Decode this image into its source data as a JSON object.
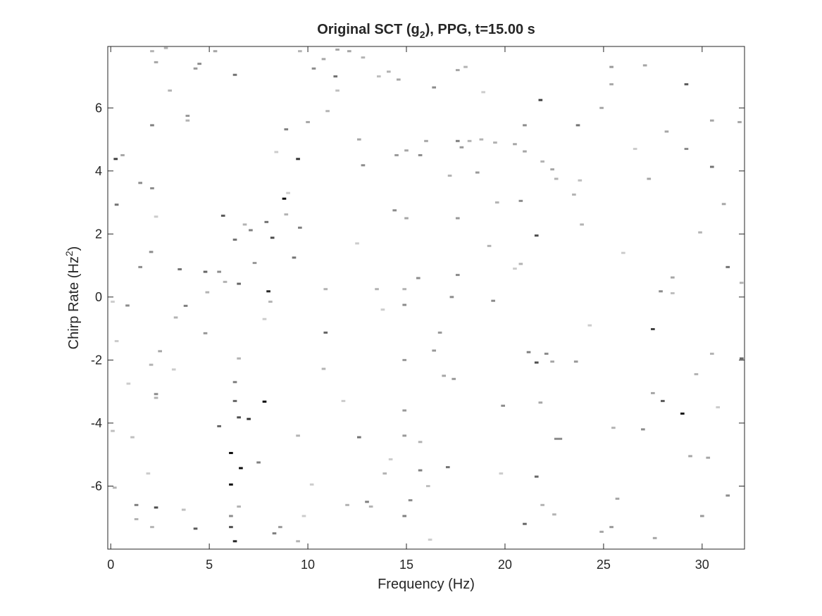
{
  "chart_data": {
    "type": "heatmap",
    "title": "Original SCT (g",
    "title_subscript": "2",
    "title_suffix": "), PPG, t=15.00 s",
    "xlabel": "Frequency (Hz)",
    "ylabel": "Chirp Rate (Hz",
    "ylabel_superscript": "2",
    "ylabel_suffix": ")",
    "xlim": [
      -0.15,
      32.15
    ],
    "ylim": [
      -8.0,
      7.95
    ],
    "x_ticks": [
      0,
      5,
      10,
      15,
      20,
      25,
      30
    ],
    "x_tick_labels": [
      "0",
      "5",
      "10",
      "15",
      "20",
      "25",
      "30"
    ],
    "y_ticks": [
      -6,
      -4,
      -2,
      0,
      2,
      4,
      6
    ],
    "y_tick_labels": [
      "-6",
      "-4",
      "-2",
      "0",
      "2",
      "4",
      "6"
    ],
    "colormap": "gray-inverted",
    "background_color": "#ffffff",
    "axis_color": "#262626",
    "grid": false,
    "cells": [
      [
        0.25,
        4.38,
        0.75
      ],
      [
        0.3,
        2.93,
        0.55
      ],
      [
        0.1,
        -0.15,
        0.2
      ],
      [
        0.3,
        -1.4,
        0.2
      ],
      [
        0.2,
        -6.05,
        0.3
      ],
      [
        0.1,
        -4.25,
        0.25
      ],
      [
        0.6,
        4.5,
        0.35
      ],
      [
        0.85,
        -0.27,
        0.45
      ],
      [
        0.9,
        -2.75,
        0.2
      ],
      [
        1.5,
        3.62,
        0.45
      ],
      [
        1.5,
        0.95,
        0.45
      ],
      [
        1.3,
        -6.6,
        0.5
      ],
      [
        1.3,
        -7.05,
        0.3
      ],
      [
        1.9,
        -5.6,
        0.2
      ],
      [
        1.1,
        -4.45,
        0.25
      ],
      [
        2.1,
        5.45,
        0.5
      ],
      [
        2.1,
        3.45,
        0.45
      ],
      [
        2.05,
        1.43,
        0.45
      ],
      [
        2.05,
        -2.15,
        0.3
      ],
      [
        2.3,
        -3.08,
        0.45
      ],
      [
        2.3,
        -3.2,
        0.3
      ],
      [
        2.3,
        -6.68,
        0.7
      ],
      [
        2.1,
        -7.3,
        0.3
      ],
      [
        2.1,
        7.8,
        0.3
      ],
      [
        2.3,
        7.45,
        0.35
      ],
      [
        2.8,
        7.9,
        0.3
      ],
      [
        2.5,
        -1.72,
        0.35
      ],
      [
        2.3,
        2.55,
        0.2
      ],
      [
        3.0,
        6.55,
        0.3
      ],
      [
        3.5,
        0.88,
        0.55
      ],
      [
        3.3,
        -0.65,
        0.3
      ],
      [
        3.8,
        -0.28,
        0.5
      ],
      [
        3.9,
        5.75,
        0.4
      ],
      [
        3.9,
        5.6,
        0.3
      ],
      [
        4.3,
        7.25,
        0.4
      ],
      [
        4.3,
        -7.35,
        0.65
      ],
      [
        4.8,
        -1.15,
        0.4
      ],
      [
        4.8,
        0.8,
        0.6
      ],
      [
        4.9,
        0.15,
        0.3
      ],
      [
        4.5,
        7.4,
        0.45
      ],
      [
        3.7,
        -6.75,
        0.25
      ],
      [
        5.3,
        7.8,
        0.35
      ],
      [
        5.5,
        -4.1,
        0.6
      ],
      [
        5.5,
        0.8,
        0.45
      ],
      [
        5.7,
        2.58,
        0.65
      ],
      [
        5.8,
        0.48,
        0.3
      ],
      [
        6.1,
        -4.95,
        0.95
      ],
      [
        6.1,
        -5.95,
        0.95
      ],
      [
        6.1,
        -7.3,
        0.7
      ],
      [
        6.1,
        -6.95,
        0.45
      ],
      [
        6.3,
        -3.3,
        0.6
      ],
      [
        6.3,
        -2.7,
        0.5
      ],
      [
        6.3,
        1.82,
        0.55
      ],
      [
        6.3,
        7.05,
        0.55
      ],
      [
        6.5,
        0.42,
        0.6
      ],
      [
        6.5,
        -1.95,
        0.3
      ],
      [
        6.5,
        -3.82,
        0.7
      ],
      [
        6.6,
        -5.43,
        0.95
      ],
      [
        6.5,
        -6.65,
        0.3
      ],
      [
        6.3,
        -7.75,
        0.85
      ],
      [
        7.0,
        -3.87,
        0.8
      ],
      [
        7.1,
        2.12,
        0.5
      ],
      [
        7.3,
        1.08,
        0.4
      ],
      [
        6.8,
        2.3,
        0.3
      ],
      [
        7.5,
        -5.25,
        0.5
      ],
      [
        7.8,
        -3.32,
        0.95
      ],
      [
        8.0,
        0.18,
        0.85
      ],
      [
        7.9,
        2.38,
        0.55
      ],
      [
        8.2,
        1.88,
        0.7
      ],
      [
        8.3,
        -7.5,
        0.5
      ],
      [
        8.1,
        -0.15,
        0.3
      ],
      [
        7.8,
        -0.7,
        0.2
      ],
      [
        8.6,
        -7.3,
        0.4
      ],
      [
        8.8,
        3.12,
        0.95
      ],
      [
        8.9,
        5.32,
        0.5
      ],
      [
        8.9,
        2.62,
        0.3
      ],
      [
        9.3,
        1.25,
        0.55
      ],
      [
        9.5,
        4.38,
        0.8
      ],
      [
        9.6,
        2.2,
        0.5
      ],
      [
        9.0,
        3.3,
        0.2
      ],
      [
        9.5,
        -4.4,
        0.3
      ],
      [
        9.5,
        -7.75,
        0.3
      ],
      [
        9.6,
        7.8,
        0.3
      ],
      [
        9.8,
        -6.95,
        0.2
      ],
      [
        10.2,
        -5.95,
        0.2
      ],
      [
        10.0,
        5.55,
        0.35
      ],
      [
        10.3,
        7.25,
        0.45
      ],
      [
        10.8,
        7.55,
        0.35
      ],
      [
        10.9,
        -1.13,
        0.6
      ],
      [
        10.9,
        0.25,
        0.3
      ],
      [
        10.8,
        -2.28,
        0.3
      ],
      [
        11.0,
        5.9,
        0.3
      ],
      [
        11.4,
        7.0,
        0.55
      ],
      [
        11.5,
        6.55,
        0.25
      ],
      [
        11.5,
        7.85,
        0.35
      ],
      [
        12.0,
        -6.6,
        0.3
      ],
      [
        12.1,
        7.8,
        0.35
      ],
      [
        11.8,
        -3.3,
        0.2
      ],
      [
        12.6,
        5.0,
        0.35
      ],
      [
        12.6,
        -4.45,
        0.55
      ],
      [
        12.8,
        4.18,
        0.45
      ],
      [
        12.8,
        7.6,
        0.3
      ],
      [
        13.0,
        -6.5,
        0.5
      ],
      [
        13.2,
        -6.65,
        0.3
      ],
      [
        13.5,
        0.25,
        0.3
      ],
      [
        13.6,
        7.0,
        0.25
      ],
      [
        13.9,
        -5.6,
        0.3
      ],
      [
        14.1,
        7.15,
        0.3
      ],
      [
        14.4,
        2.75,
        0.45
      ],
      [
        14.5,
        4.5,
        0.4
      ],
      [
        14.2,
        -5.15,
        0.2
      ],
      [
        14.6,
        6.9,
        0.35
      ],
      [
        14.9,
        -0.25,
        0.45
      ],
      [
        14.9,
        0.25,
        0.3
      ],
      [
        14.9,
        -2.0,
        0.4
      ],
      [
        14.9,
        -3.6,
        0.4
      ],
      [
        14.9,
        -4.4,
        0.4
      ],
      [
        14.9,
        -6.95,
        0.5
      ],
      [
        15.0,
        2.5,
        0.35
      ],
      [
        15.0,
        4.65,
        0.35
      ],
      [
        15.2,
        -6.45,
        0.45
      ],
      [
        15.6,
        0.6,
        0.45
      ],
      [
        15.7,
        4.5,
        0.45
      ],
      [
        15.7,
        -5.5,
        0.5
      ],
      [
        15.7,
        -4.6,
        0.3
      ],
      [
        16.0,
        4.95,
        0.35
      ],
      [
        16.1,
        -6.0,
        0.25
      ],
      [
        16.4,
        -1.7,
        0.4
      ],
      [
        16.4,
        6.65,
        0.45
      ],
      [
        16.7,
        -1.13,
        0.4
      ],
      [
        16.9,
        -2.5,
        0.35
      ],
      [
        17.1,
        -5.4,
        0.55
      ],
      [
        17.2,
        3.85,
        0.3
      ],
      [
        17.3,
        0.0,
        0.45
      ],
      [
        17.4,
        -2.6,
        0.4
      ],
      [
        17.6,
        7.2,
        0.35
      ],
      [
        17.6,
        4.95,
        0.5
      ],
      [
        17.6,
        2.5,
        0.4
      ],
      [
        17.6,
        0.7,
        0.45
      ],
      [
        17.8,
        4.75,
        0.4
      ],
      [
        18.0,
        7.3,
        0.3
      ],
      [
        18.2,
        4.95,
        0.3
      ],
      [
        18.6,
        3.95,
        0.4
      ],
      [
        18.8,
        5.0,
        0.3
      ],
      [
        19.2,
        1.62,
        0.3
      ],
      [
        19.4,
        -0.12,
        0.45
      ],
      [
        19.5,
        4.9,
        0.3
      ],
      [
        19.6,
        3.0,
        0.3
      ],
      [
        19.9,
        -3.45,
        0.45
      ],
      [
        20.5,
        4.85,
        0.35
      ],
      [
        20.8,
        3.05,
        0.45
      ],
      [
        20.8,
        1.05,
        0.3
      ],
      [
        21.0,
        -7.2,
        0.6
      ],
      [
        21.0,
        4.62,
        0.35
      ],
      [
        21.0,
        5.45,
        0.45
      ],
      [
        21.2,
        -1.75,
        0.5
      ],
      [
        21.6,
        1.95,
        0.7
      ],
      [
        21.6,
        -2.08,
        0.7
      ],
      [
        21.6,
        -5.7,
        0.6
      ],
      [
        21.8,
        6.25,
        0.75
      ],
      [
        21.8,
        -3.35,
        0.35
      ],
      [
        21.9,
        4.3,
        0.3
      ],
      [
        21.9,
        -6.6,
        0.3
      ],
      [
        22.1,
        -1.8,
        0.45
      ],
      [
        22.4,
        4.05,
        0.35
      ],
      [
        22.4,
        -2.05,
        0.35
      ],
      [
        22.6,
        -4.5,
        0.45
      ],
      [
        22.8,
        -4.5,
        0.45
      ],
      [
        22.6,
        3.75,
        0.3
      ],
      [
        22.5,
        -6.9,
        0.3
      ],
      [
        23.5,
        3.25,
        0.3
      ],
      [
        23.6,
        -2.05,
        0.4
      ],
      [
        23.7,
        5.45,
        0.55
      ],
      [
        23.8,
        3.7,
        0.25
      ],
      [
        23.9,
        2.3,
        0.3
      ],
      [
        24.9,
        6.0,
        0.35
      ],
      [
        24.9,
        -7.45,
        0.35
      ],
      [
        25.4,
        7.3,
        0.4
      ],
      [
        25.4,
        6.75,
        0.35
      ],
      [
        25.4,
        -7.3,
        0.4
      ],
      [
        25.5,
        -4.15,
        0.3
      ],
      [
        25.7,
        -6.4,
        0.35
      ],
      [
        27.0,
        -4.2,
        0.45
      ],
      [
        27.1,
        7.35,
        0.35
      ],
      [
        27.3,
        3.75,
        0.35
      ],
      [
        27.5,
        -1.02,
        0.75
      ],
      [
        27.5,
        -3.05,
        0.35
      ],
      [
        27.6,
        -7.65,
        0.35
      ],
      [
        27.9,
        0.18,
        0.45
      ],
      [
        28.0,
        -3.3,
        0.65
      ],
      [
        28.2,
        5.25,
        0.35
      ],
      [
        28.5,
        0.62,
        0.35
      ],
      [
        28.5,
        0.12,
        0.25
      ],
      [
        29.0,
        -3.7,
        0.9
      ],
      [
        29.2,
        6.75,
        0.65
      ],
      [
        29.2,
        4.7,
        0.45
      ],
      [
        29.4,
        -5.05,
        0.35
      ],
      [
        29.7,
        -2.45,
        0.3
      ],
      [
        29.9,
        2.05,
        0.3
      ],
      [
        30.0,
        -6.95,
        0.4
      ],
      [
        30.3,
        -5.1,
        0.35
      ],
      [
        30.5,
        5.6,
        0.35
      ],
      [
        30.5,
        4.13,
        0.55
      ],
      [
        30.5,
        -1.8,
        0.3
      ],
      [
        31.1,
        2.95,
        0.35
      ],
      [
        31.3,
        0.95,
        0.55
      ],
      [
        31.3,
        -6.3,
        0.45
      ],
      [
        31.9,
        5.55,
        0.35
      ],
      [
        32.0,
        -1.95,
        0.6
      ],
      [
        32.0,
        0.45,
        0.3
      ],
      [
        26.6,
        4.7,
        0.2
      ],
      [
        19.8,
        -5.6,
        0.2
      ],
      [
        20.5,
        0.9,
        0.2
      ],
      [
        12.5,
        1.7,
        0.2
      ],
      [
        3.2,
        -2.3,
        0.2
      ],
      [
        8.4,
        4.6,
        0.2
      ],
      [
        16.2,
        -7.7,
        0.2
      ],
      [
        24.3,
        -0.9,
        0.2
      ],
      [
        30.8,
        -3.5,
        0.2
      ],
      [
        18.9,
        6.5,
        0.2
      ],
      [
        26.0,
        1.4,
        0.2
      ],
      [
        13.8,
        -0.4,
        0.2
      ]
    ]
  }
}
